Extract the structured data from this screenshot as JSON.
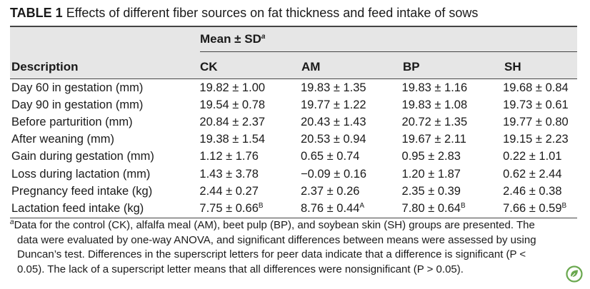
{
  "caption": {
    "label": "TABLE 1",
    "text": "Effects of different fiber sources on fat thickness and feed intake of sows"
  },
  "header": {
    "group_label": "Mean ± SD",
    "group_sup": "a",
    "description_label": "Description",
    "columns": [
      "CK",
      "AM",
      "BP",
      "SH"
    ]
  },
  "rows": [
    {
      "description": "Day 60 in gestation (mm)",
      "values": [
        "19.82 ± 1.00",
        "19.83 ± 1.35",
        "19.83 ± 1.16",
        "19.68 ± 0.84"
      ],
      "sups": [
        "",
        "",
        "",
        ""
      ]
    },
    {
      "description": "Day 90 in gestation (mm)",
      "values": [
        "19.54 ± 0.78",
        "19.77 ± 1.22",
        "19.83 ± 1.08",
        "19.73 ± 0.61"
      ],
      "sups": [
        "",
        "",
        "",
        ""
      ]
    },
    {
      "description": "Before parturition (mm)",
      "values": [
        "20.84 ± 2.37",
        "20.43 ± 1.43",
        "20.72 ± 1.35",
        "19.77 ± 0.80"
      ],
      "sups": [
        "",
        "",
        "",
        ""
      ]
    },
    {
      "description": "After weaning (mm)",
      "values": [
        "19.38 ± 1.54",
        "20.53 ± 0.94",
        "19.67 ± 2.11",
        "19.15 ± 2.23"
      ],
      "sups": [
        "",
        "",
        "",
        ""
      ]
    },
    {
      "description": "Gain during gestation (mm)",
      "values": [
        "1.12 ± 1.76",
        "0.65 ± 0.74",
        "0.95 ± 2.83",
        "0.22 ± 1.01"
      ],
      "sups": [
        "",
        "",
        "",
        ""
      ]
    },
    {
      "description": "Loss during lactation (mm)",
      "values": [
        "1.43 ± 3.78",
        "−0.09 ± 0.16",
        "1.20 ± 1.87",
        "0.62 ± 2.44"
      ],
      "sups": [
        "",
        "",
        "",
        ""
      ]
    },
    {
      "description": "Pregnancy feed intake (kg)",
      "values": [
        "2.44 ± 0.27",
        "2.37 ± 0.26",
        "2.35 ± 0.39",
        "2.46 ± 0.38"
      ],
      "sups": [
        "",
        "",
        "",
        ""
      ]
    },
    {
      "description": "Lactation feed intake (kg)",
      "values": [
        "7.75 ± 0.66",
        "8.76 ± 0.44",
        "7.80 ± 0.64",
        "7.66 ± 0.59"
      ],
      "sups": [
        "B",
        "A",
        "B",
        "B"
      ]
    }
  ],
  "footnote": {
    "marker": "a",
    "lines": [
      "Data for the control (CK), alfalfa meal (AM), beet pulp (BP), and soybean skin (SH) groups are presented. The",
      "data were evaluated by one-way ANOVA, and significant differences between means were assessed by using",
      "Duncan’s test. Differences in the superscript letters for peer data indicate that a difference is significant (P <",
      "0.05). The lack of a superscript letter means that all differences were nonsignificant (P > 0.05)."
    ]
  },
  "colors": {
    "header_band": "#e6e6e6",
    "rule": "#444444",
    "badge": "#6aa84f"
  },
  "icons": {
    "badge": "green-leaf-badge-icon"
  }
}
